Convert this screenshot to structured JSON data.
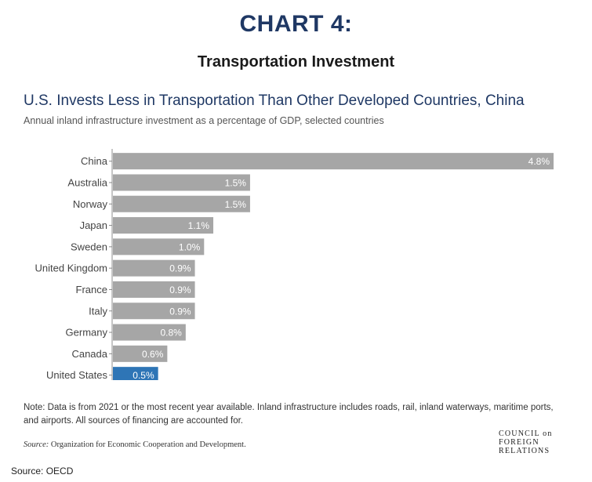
{
  "header": {
    "chart_number": "CHART 4:",
    "subject": "Transportation Investment"
  },
  "chart_data": {
    "type": "bar",
    "orientation": "horizontal",
    "title": "U.S. Invests Less in Transportation Than Other Developed Countries, China",
    "subtitle": "Annual inland infrastructure investment as a percentage of GDP, selected countries",
    "categories": [
      "China",
      "Australia",
      "Norway",
      "Japan",
      "Sweden",
      "United Kingdom",
      "France",
      "Italy",
      "Germany",
      "Canada",
      "United States"
    ],
    "values": [
      4.8,
      1.5,
      1.5,
      1.1,
      1.0,
      0.9,
      0.9,
      0.9,
      0.8,
      0.6,
      0.5
    ],
    "value_labels": [
      "4.8%",
      "1.5%",
      "1.5%",
      "1.1%",
      "1.0%",
      "0.9%",
      "0.9%",
      "0.9%",
      "0.8%",
      "0.6%",
      "0.5%"
    ],
    "colors": {
      "default": "#a6a6a6",
      "highlight": "#2e75b6",
      "highlight_category": "United States"
    },
    "xlim": [
      0,
      4.8
    ],
    "grid": false,
    "legend": "none"
  },
  "footer": {
    "note": "Note: Data is from 2021 or the most recent year available. Inland infrastructure includes roads, rail, inland waterways, maritime ports, and airports. All sources of financing are accounted for.",
    "source_label": "Source:",
    "source_text": "Organization for Economic Cooperation and Development.",
    "logo_lines": [
      "COUNCIL on",
      "FOREIGN",
      "RELATIONS"
    ],
    "outer_source": "Source: OECD"
  }
}
